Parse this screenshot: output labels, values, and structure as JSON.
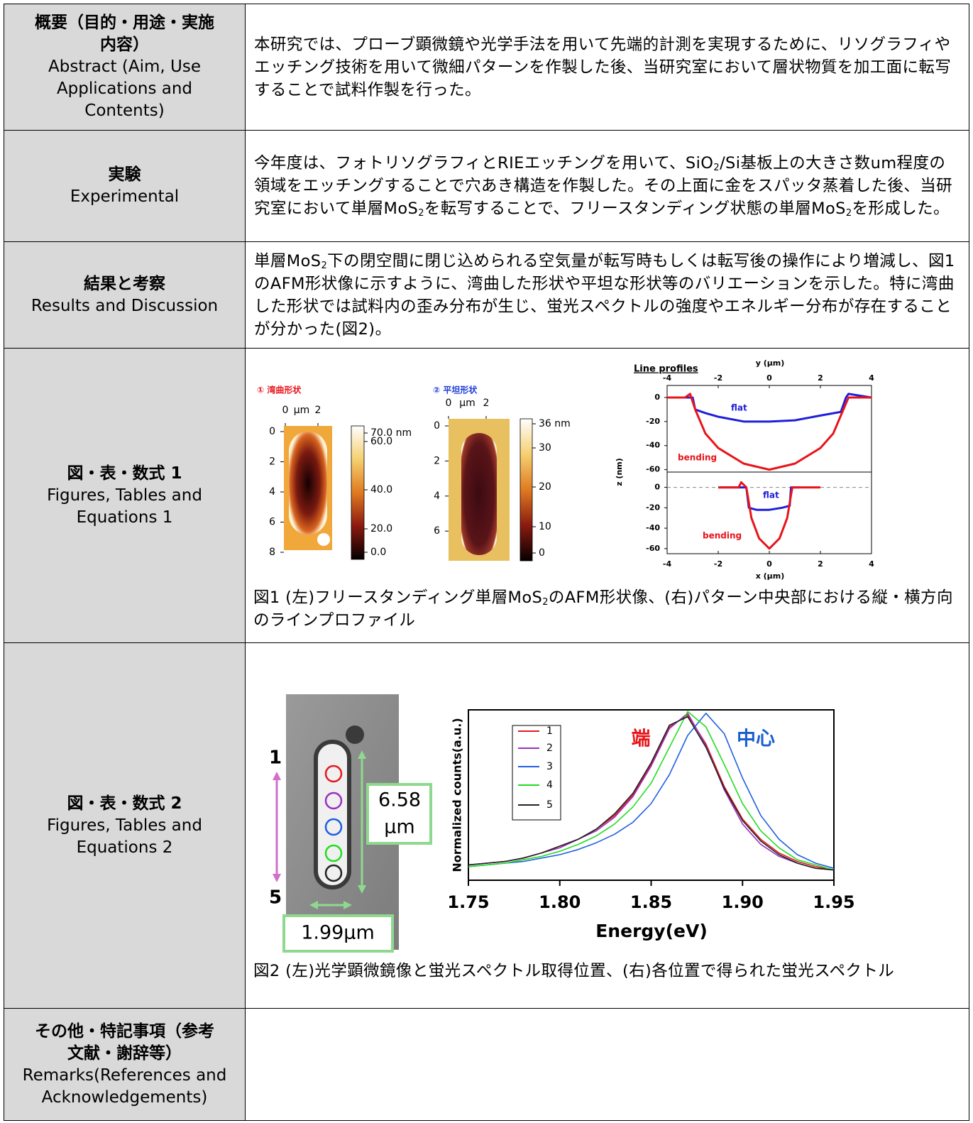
{
  "rows": [
    {
      "label": {
        "ja": [
          "概要（目的・用途・実施",
          "内容）"
        ],
        "en": [
          "Abstract (Aim, Use",
          "Applications and",
          "Contents)"
        ]
      },
      "text": [
        "本研究では、プローブ顕微鏡や光学手法を用いて先端的計測を実現するために、リソグラフィやエッチング技術を用いて微細パターンを作製した後、当研究室において層状物質を加工面に転写することで試料作製を行った。"
      ]
    },
    {
      "label": {
        "ja": [
          "実験"
        ],
        "en": [
          "Experimental"
        ]
      },
      "text": [
        "今年度は、フォトリソグラフィとRIEエッチングを用いて、SiO",
        {
          "sub": "2"
        },
        "/Si基板上の大きさ数um程度の領域をエッチングすることで穴あき構造を作製した。その上面に金をスパッタ蒸着した後、当研究室において単層MoS",
        {
          "sub": "2"
        },
        "を転写することで、フリースタンディング状態の単層MoS",
        {
          "sub": "2"
        },
        "を形成した。"
      ]
    },
    {
      "label": {
        "ja": [
          "結果と考察"
        ],
        "en": [
          "Results and Discussion"
        ]
      },
      "text": [
        "単層MoS",
        {
          "sub": "2"
        },
        "下の閉空間に閉じ込められる空気量が転写時もしくは転写後の操作により増減し、図1のAFM形状像に示すように、湾曲した形状や平坦な形状等のバリエーションを示した。特に湾曲した形状では試料内の歪み分布が生じ、蛍光スペクトルの強度やエネルギー分布が存在することが分かった(図2)。"
      ]
    },
    {
      "label": {
        "ja": [
          "図・表・数式 1"
        ],
        "en": [
          "Figures, Tables and",
          "Equations 1"
        ]
      }
    },
    {
      "label": {
        "ja": [
          "図・表・数式 2"
        ],
        "en": [
          "Figures, Tables and",
          "Equations 2"
        ]
      }
    },
    {
      "label": {
        "ja": [
          "その他・特記事項（参考",
          "文献・謝辞等）"
        ],
        "en": [
          "Remarks(References and",
          "Acknowledgements)"
        ]
      }
    }
  ],
  "figure1": {
    "afm": [
      {
        "title": "① 湾曲形状",
        "xticks": [
          0,
          2
        ],
        "xunit": "µm",
        "yticks": [
          0,
          2,
          4,
          6,
          8
        ],
        "colorbar": [
          "70.0 nm",
          "60.0",
          "40.0",
          "20.0",
          "0.0"
        ]
      },
      {
        "title": "② 平坦形状",
        "xticks": [
          0,
          2
        ],
        "xunit": "µm",
        "yticks": [
          0,
          2,
          4,
          6
        ],
        "colorbar": [
          "36 nm",
          "30",
          "20",
          "10",
          "0"
        ]
      }
    ],
    "profiles": {
      "title": "Line profiles",
      "top_label": "y (µm)",
      "bottom_label": "x (µm)",
      "z_label": "z (nm)",
      "xlim": [
        -4,
        4
      ],
      "xticks": [
        -4,
        -2,
        0,
        2,
        4
      ],
      "panels": [
        {
          "zlim": [
            -62,
            10
          ],
          "zticks": [
            0,
            -20,
            -40,
            -60
          ],
          "series": [
            {
              "name": "flat",
              "color": "#1f1fd8",
              "x": [
                -3.4,
                -3.0,
                -2.9,
                -2.5,
                -2.0,
                -1.0,
                0,
                1.0,
                2.0,
                2.8,
                3.0,
                3.1,
                4.0
              ],
              "z": [
                0,
                0,
                -10,
                -13,
                -16,
                -20,
                -20,
                -19,
                -15,
                -12,
                0,
                3,
                0
              ]
            },
            {
              "name": "bending",
              "color": "#e8141a",
              "x": [
                -4.0,
                -3.3,
                -3.1,
                -2.9,
                -2.5,
                -2.0,
                -1.0,
                0,
                1.0,
                2.0,
                2.5,
                2.9,
                3.1,
                4.0
              ],
              "z": [
                0,
                0,
                3,
                -10,
                -30,
                -42,
                -55,
                -60,
                -55,
                -42,
                -30,
                -10,
                0,
                0
              ]
            }
          ]
        },
        {
          "zlim": [
            -65,
            15
          ],
          "zticks": [
            0,
            -20,
            -40,
            -60
          ],
          "series": [
            {
              "name": "flat",
              "color": "#1f1fd8",
              "x": [
                -2.0,
                -0.9,
                -0.8,
                -0.5,
                0,
                0.5,
                0.8,
                0.85,
                1.2
              ],
              "z": [
                0,
                0,
                -20,
                -22,
                -22,
                -20,
                -18,
                0,
                0
              ]
            },
            {
              "name": "bending",
              "color": "#e8141a",
              "x": [
                -2.0,
                -1.2,
                -1.1,
                -0.9,
                -0.7,
                -0.4,
                0,
                0.4,
                0.7,
                0.9,
                2.0
              ],
              "z": [
                0,
                0,
                5,
                0,
                -30,
                -50,
                -60,
                -50,
                -30,
                0,
                0
              ]
            }
          ]
        }
      ]
    },
    "caption": [
      "図1 (左)フリースタンディング単層MoS",
      {
        "sub": "2"
      },
      "のAFM形状像、(右)パターン中央部における縦・横方向のラインプロファイル"
    ]
  },
  "figure2": {
    "image_labels": {
      "top": "1",
      "bottom": "5",
      "length": [
        "6.58",
        "μm"
      ],
      "width": "1.99μm"
    },
    "spectrum": {
      "ylabel": "Normalized counts(a.u.)",
      "xlabel": "Energy(eV)",
      "xlim": [
        1.75,
        1.95
      ],
      "ylim": [
        0,
        1
      ],
      "xticks": [
        1.75,
        {
          "value": 1.8,
          "label": "1.80"
        },
        1.85,
        {
          "value": 1.9,
          "label": "1.90"
        },
        1.95
      ],
      "x": [
        1.75,
        1.76,
        1.77,
        1.78,
        1.79,
        1.8,
        1.81,
        1.82,
        1.83,
        1.84,
        1.85,
        1.86,
        1.87,
        1.88,
        1.89,
        1.9,
        1.91,
        1.92,
        1.93,
        1.94,
        1.95
      ],
      "series": [
        {
          "name": "1",
          "color": "#e31a1c",
          "values": [
            0.09,
            0.1,
            0.11,
            0.13,
            0.16,
            0.2,
            0.24,
            0.3,
            0.38,
            0.5,
            0.68,
            0.9,
            0.97,
            0.8,
            0.55,
            0.36,
            0.24,
            0.16,
            0.11,
            0.08,
            0.06
          ]
        },
        {
          "name": "2",
          "color": "#9b30c0",
          "values": [
            0.09,
            0.1,
            0.11,
            0.13,
            0.16,
            0.19,
            0.24,
            0.29,
            0.37,
            0.49,
            0.67,
            0.89,
            0.98,
            0.79,
            0.53,
            0.33,
            0.21,
            0.14,
            0.1,
            0.07,
            0.06
          ]
        },
        {
          "name": "3",
          "color": "#1f5fe0",
          "values": [
            0.08,
            0.09,
            0.1,
            0.11,
            0.13,
            0.15,
            0.18,
            0.22,
            0.27,
            0.34,
            0.45,
            0.62,
            0.85,
            0.98,
            0.86,
            0.6,
            0.38,
            0.24,
            0.15,
            0.1,
            0.07
          ]
        },
        {
          "name": "4",
          "color": "#22dd22",
          "values": [
            0.08,
            0.09,
            0.1,
            0.12,
            0.14,
            0.17,
            0.21,
            0.26,
            0.33,
            0.43,
            0.57,
            0.78,
            0.99,
            0.9,
            0.68,
            0.45,
            0.29,
            0.19,
            0.12,
            0.09,
            0.06
          ]
        },
        {
          "name": "5",
          "color": "#222222",
          "values": [
            0.09,
            0.1,
            0.11,
            0.13,
            0.16,
            0.2,
            0.24,
            0.3,
            0.39,
            0.51,
            0.69,
            0.91,
            0.96,
            0.78,
            0.54,
            0.35,
            0.23,
            0.15,
            0.1,
            0.07,
            0.06
          ]
        }
      ],
      "annotations": [
        {
          "text": "端",
          "color": "#e8141a"
        },
        {
          "text": "中心",
          "color": "#1a5fd0"
        }
      ]
    },
    "caption": [
      "図2 (左)光学顕微鏡像と蛍光スペクトル取得位置、(右)各位置で得られた蛍光スペクトル"
    ]
  }
}
